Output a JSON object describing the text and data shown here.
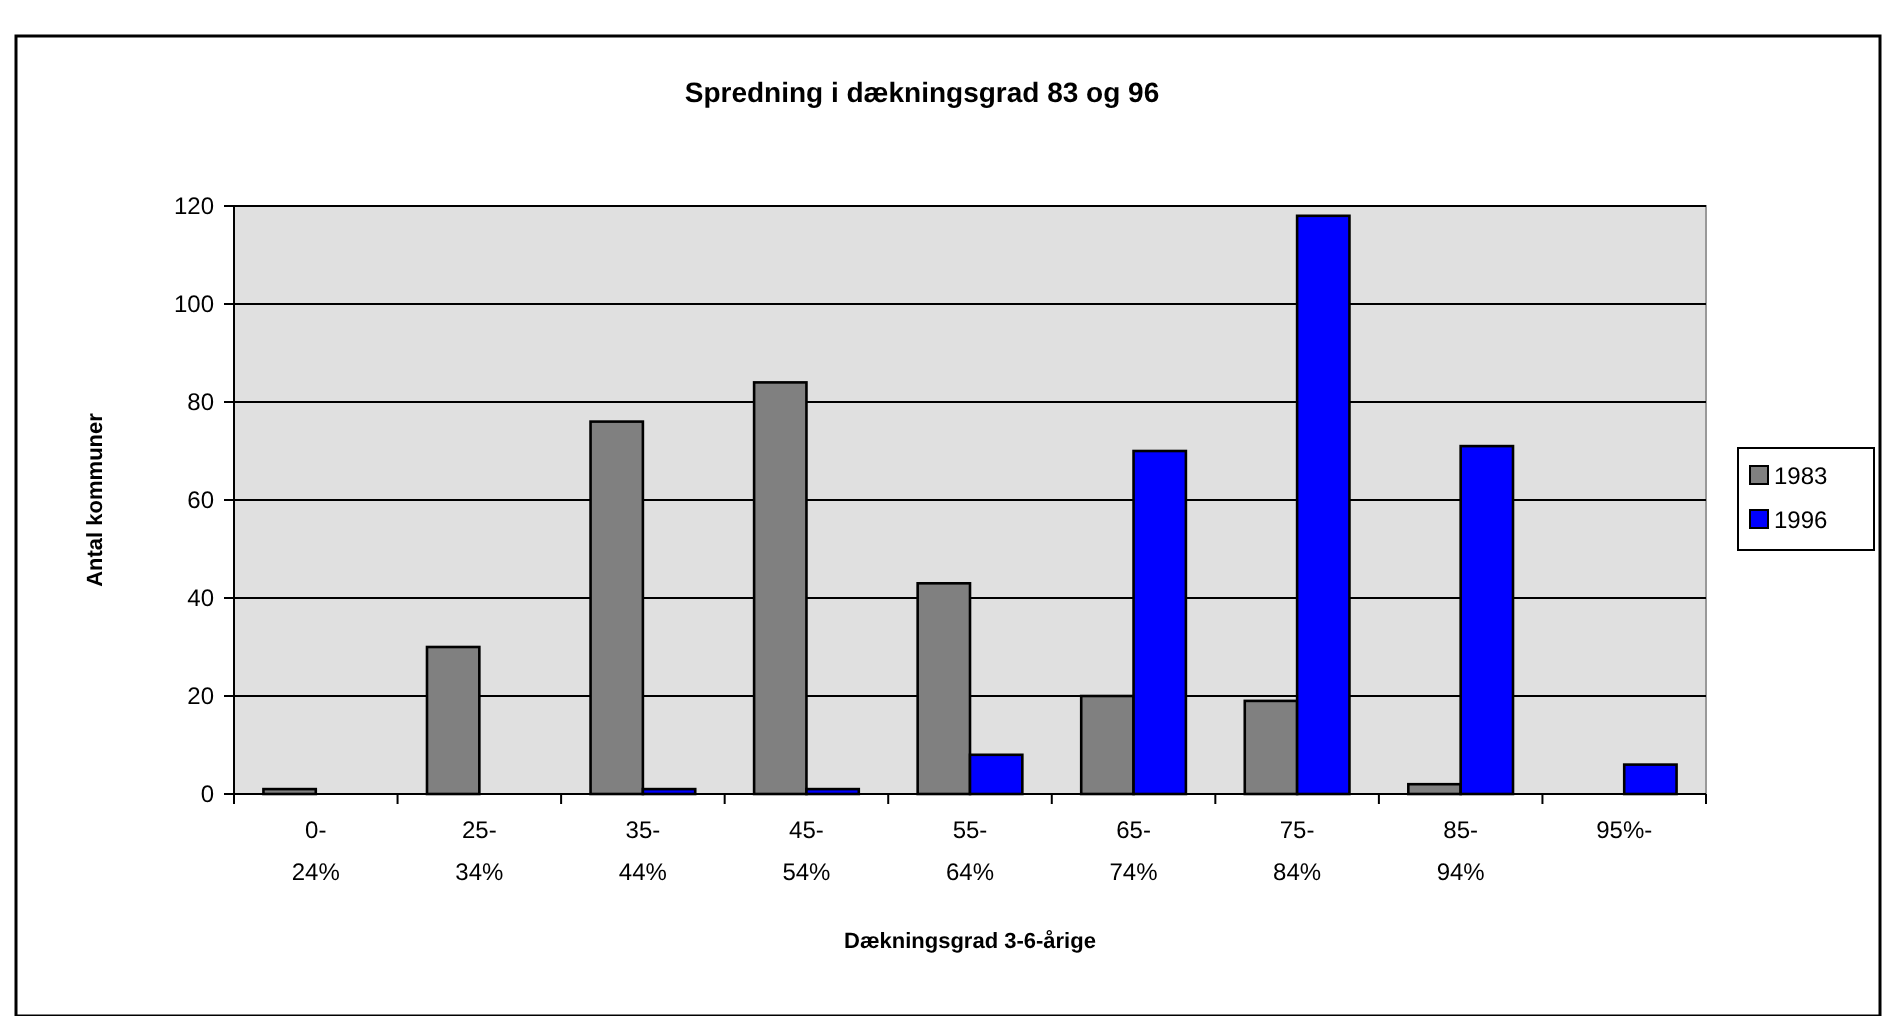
{
  "chart_data": {
    "type": "bar",
    "title": "Spredning i dækningsgrad 83 og 96",
    "xlabel": "Dækningsgrad 3-6-årige",
    "ylabel": "Antal kommuner",
    "categories": [
      "0-\n24%",
      "25-\n34%",
      "35-\n44%",
      "45-\n54%",
      "55-\n64%",
      "65-\n74%",
      "75-\n84%",
      "85-\n94%",
      "95%-"
    ],
    "series": [
      {
        "name": "1983",
        "color": "#808080",
        "values": [
          1,
          30,
          76,
          84,
          43,
          20,
          19,
          2,
          0
        ]
      },
      {
        "name": "1996",
        "color": "#0000ff",
        "values": [
          0,
          0,
          1,
          1,
          8,
          70,
          118,
          71,
          6
        ]
      }
    ],
    "ylim": [
      0,
      120
    ],
    "yticks": [
      0,
      20,
      40,
      60,
      80,
      100,
      120
    ],
    "grid": "y",
    "legend": "right"
  }
}
